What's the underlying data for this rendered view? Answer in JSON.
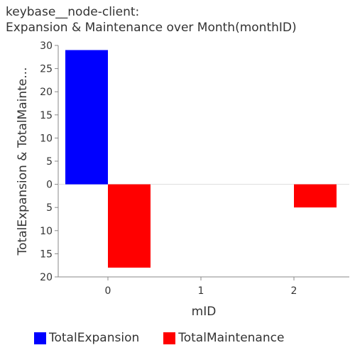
{
  "chart_data": {
    "type": "bar",
    "title_line1": "keybase__node-client:",
    "title_line2": "Expansion & Maintenance over Month(monthID)",
    "xlabel": "mID",
    "ylabel": "TotalExpansion & TotalMainte...",
    "categories": [
      "0",
      "1",
      "2"
    ],
    "series": [
      {
        "name": "TotalExpansion",
        "color": "#0000ff",
        "values": [
          29,
          0,
          0
        ]
      },
      {
        "name": "TotalMaintenance",
        "color": "#ff0000",
        "values": [
          -18,
          0,
          -5
        ]
      }
    ],
    "y_ticks": [
      30,
      25,
      20,
      15,
      10,
      5,
      0,
      -5,
      -10,
      -15,
      -20
    ],
    "y_tick_labels": [
      "30",
      "25",
      "20",
      "15",
      "10",
      "5",
      "0",
      "5",
      "10",
      "15",
      "20"
    ],
    "ylim": [
      -20,
      30
    ],
    "grid": false,
    "legend_position": "bottom"
  }
}
